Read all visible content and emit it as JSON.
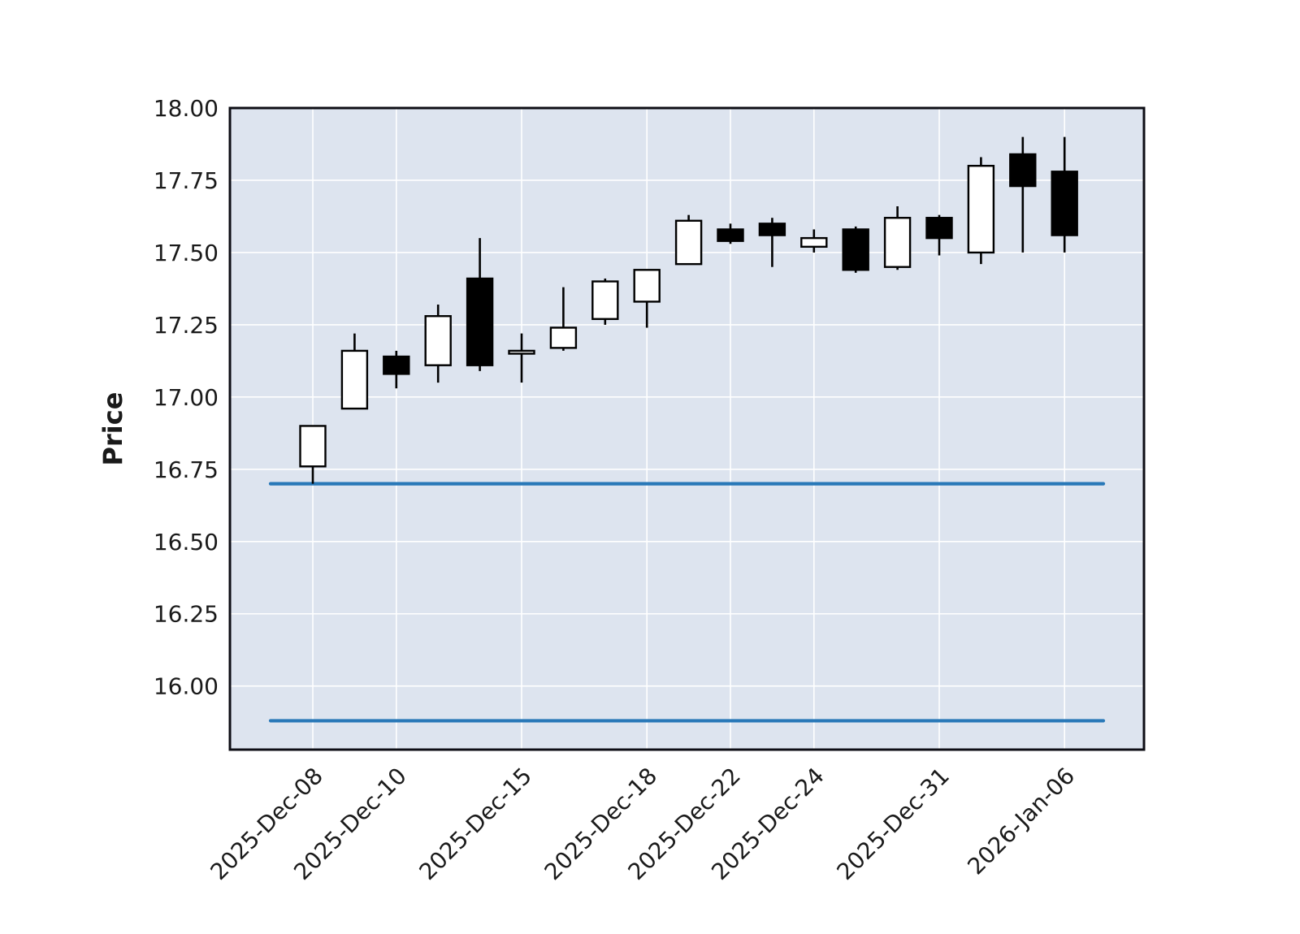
{
  "chart_data": {
    "type": "candlestick",
    "title": "",
    "xlabel": "",
    "ylabel": "Price",
    "ylim": [
      15.78,
      18.0
    ],
    "y_ticks": [
      16.0,
      16.25,
      16.5,
      16.75,
      17.0,
      17.25,
      17.5,
      17.75,
      18.0
    ],
    "x_ticks": [
      {
        "index": 0,
        "label": "2025-Dec-08"
      },
      {
        "index": 2,
        "label": "2025-Dec-10"
      },
      {
        "index": 5,
        "label": "2025-Dec-15"
      },
      {
        "index": 8,
        "label": "2025-Dec-18"
      },
      {
        "index": 10,
        "label": "2025-Dec-22"
      },
      {
        "index": 12,
        "label": "2025-Dec-24"
      },
      {
        "index": 15,
        "label": "2025-Dec-31"
      },
      {
        "index": 18,
        "label": "2026-Jan-06"
      }
    ],
    "candles": [
      {
        "open": 16.76,
        "high": 16.9,
        "low": 16.7,
        "close": 16.9
      },
      {
        "open": 16.96,
        "high": 17.22,
        "low": 16.96,
        "close": 17.16
      },
      {
        "open": 17.14,
        "high": 17.16,
        "low": 17.03,
        "close": 17.08
      },
      {
        "open": 17.11,
        "high": 17.32,
        "low": 17.05,
        "close": 17.28
      },
      {
        "open": 17.41,
        "high": 17.55,
        "low": 17.09,
        "close": 17.11
      },
      {
        "open": 17.15,
        "high": 17.22,
        "low": 17.05,
        "close": 17.16
      },
      {
        "open": 17.17,
        "high": 17.38,
        "low": 17.16,
        "close": 17.24
      },
      {
        "open": 17.27,
        "high": 17.41,
        "low": 17.25,
        "close": 17.4
      },
      {
        "open": 17.33,
        "high": 17.44,
        "low": 17.24,
        "close": 17.44
      },
      {
        "open": 17.46,
        "high": 17.63,
        "low": 17.46,
        "close": 17.61
      },
      {
        "open": 17.58,
        "high": 17.6,
        "low": 17.53,
        "close": 17.54
      },
      {
        "open": 17.6,
        "high": 17.62,
        "low": 17.45,
        "close": 17.56
      },
      {
        "open": 17.52,
        "high": 17.58,
        "low": 17.5,
        "close": 17.55
      },
      {
        "open": 17.58,
        "high": 17.59,
        "low": 17.43,
        "close": 17.44
      },
      {
        "open": 17.45,
        "high": 17.66,
        "low": 17.44,
        "close": 17.62
      },
      {
        "open": 17.62,
        "high": 17.63,
        "low": 17.49,
        "close": 17.55
      },
      {
        "open": 17.5,
        "high": 17.83,
        "low": 17.46,
        "close": 17.8
      },
      {
        "open": 17.84,
        "high": 17.9,
        "low": 17.5,
        "close": 17.73
      },
      {
        "open": 17.78,
        "high": 17.9,
        "low": 17.5,
        "close": 17.56
      }
    ],
    "hlines": [
      16.7,
      15.88
    ],
    "grid": true,
    "legend": null,
    "colors": {
      "up_fill": "#ffffff",
      "down_fill": "#000000",
      "edge": "#000000",
      "wick": "#000000",
      "hline": "#2878b8",
      "plot_bg": "#dde4ef",
      "figure_bg": "#ffffff",
      "grid": "#ffffff",
      "text": "#1a1a1a",
      "spine": "#0d0d14"
    }
  }
}
